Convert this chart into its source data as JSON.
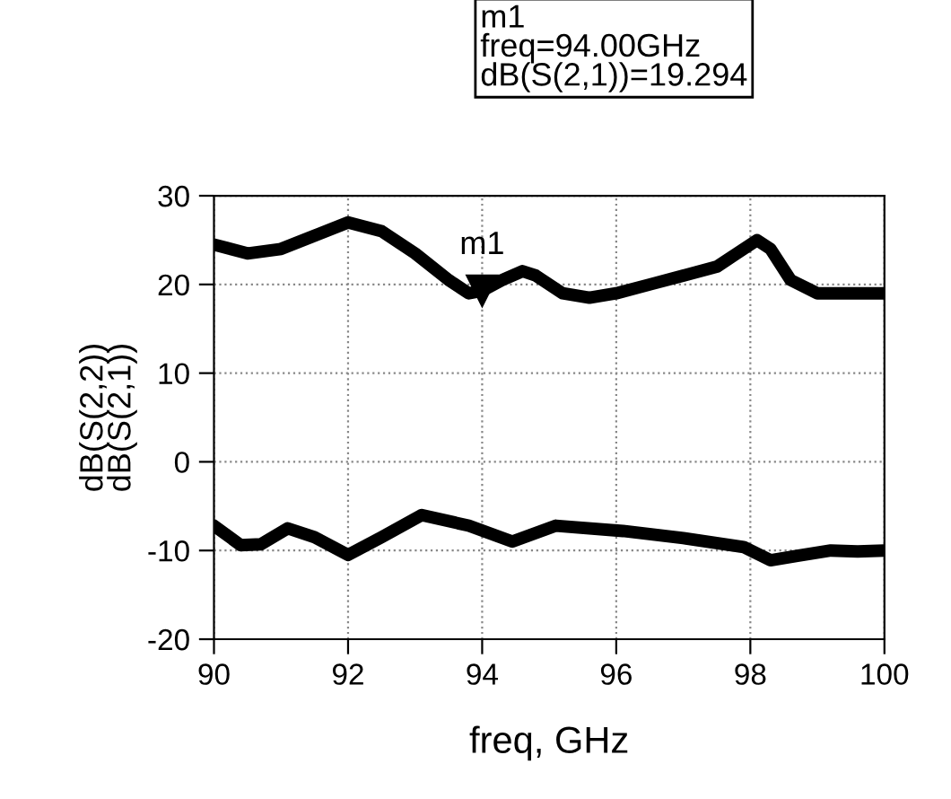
{
  "chart_data": {
    "type": "line",
    "xlabel": "freq, GHz",
    "ylabel": "dB(S(2,2))\ndB(S(2,1))",
    "series": [
      {
        "color": "#000000",
        "x": [
          90,
          90.5,
          91,
          91.5,
          92,
          92.5,
          93,
          93.5,
          93.8,
          94,
          94.3,
          94.6,
          94.8,
          95.2,
          95.6,
          96,
          96.5,
          97,
          97.5,
          97.8,
          98.1,
          98.3,
          98.6,
          99,
          99.5,
          100
        ],
        "values": [
          24.5,
          23.5,
          24,
          25.5,
          27,
          26,
          23.5,
          20.5,
          19,
          19.294,
          20.5,
          21.5,
          21,
          19,
          18.5,
          19,
          20,
          21,
          22,
          23.5,
          25,
          24,
          20.5,
          19,
          19,
          19
        ]
      },
      {
        "color": "#000000",
        "x": [
          90,
          90.4,
          90.7,
          91.1,
          91.5,
          92,
          92.5,
          93.1,
          93.8,
          94.45,
          95.1,
          96.1,
          97,
          97.9,
          98.3,
          98.7,
          99.2,
          99.6,
          100
        ],
        "values": [
          -7.2,
          -9.4,
          -9.3,
          -7.5,
          -8.5,
          -10.5,
          -8.5,
          -6,
          -7.2,
          -9,
          -7.2,
          -7.8,
          -8.6,
          -9.6,
          -11.1,
          -10.6,
          -10,
          -10.1,
          -10
        ]
      }
    ],
    "xlim": [
      90,
      100
    ],
    "xticks": [
      90,
      92,
      94,
      96,
      98,
      100
    ],
    "ylim": [
      -20,
      30
    ],
    "yticks": [
      -20,
      -10,
      0,
      10,
      20,
      30
    ],
    "grid": true,
    "marker": "none",
    "line_style": "solid",
    "annotations": [
      {
        "text": "m1",
        "x": 94,
        "y": 19.294
      },
      "m1\nfreq=94.00GHz\ndB(S(2,1))=19.294"
    ]
  }
}
